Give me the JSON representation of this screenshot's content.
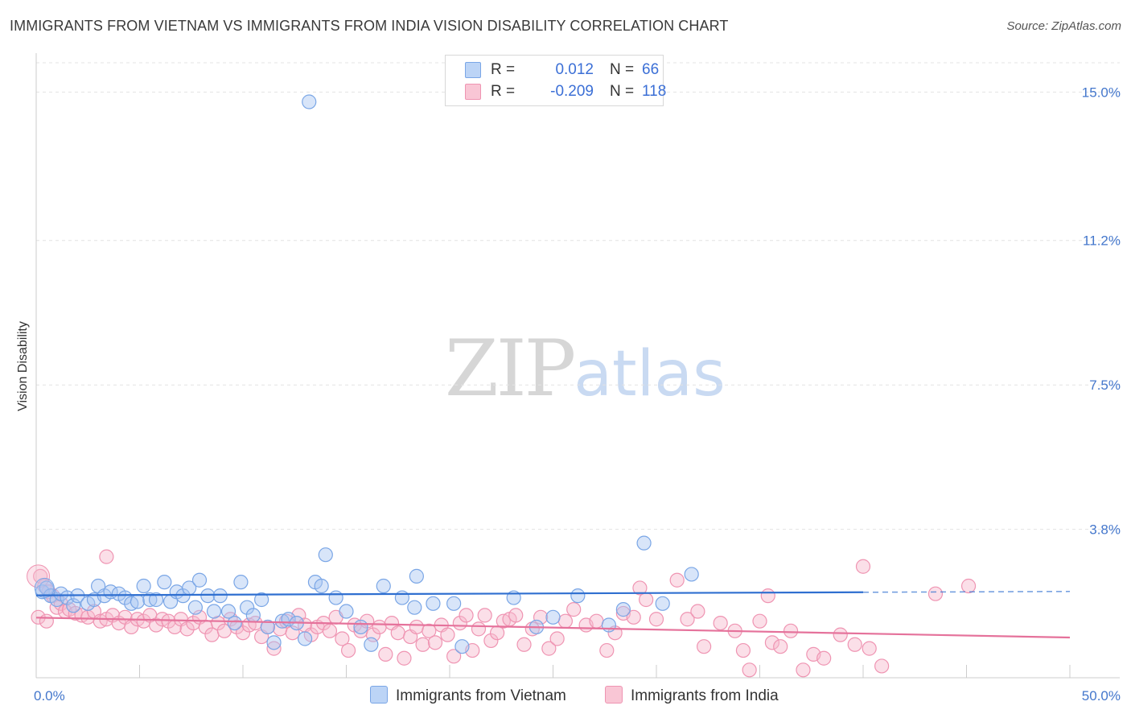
{
  "header": {
    "title": "IMMIGRANTS FROM VIETNAM VS IMMIGRANTS FROM INDIA VISION DISABILITY CORRELATION CHART",
    "source": "Source: ZipAtlas.com"
  },
  "watermark": {
    "zip": "ZIP",
    "atlas": "atlas"
  },
  "legend": {
    "series": [
      {
        "r_label": "R =",
        "r_value": "0.012",
        "n_label": "N =",
        "n_value": "66"
      },
      {
        "r_label": "R =",
        "r_value": "-0.209",
        "n_label": "N =",
        "n_value": "118"
      }
    ]
  },
  "bottom_legend": {
    "vietnam": "Immigrants from Vietnam",
    "india": "Immigrants from India"
  },
  "chart_data": {
    "type": "scatter",
    "title": "IMMIGRANTS FROM VIETNAM VS IMMIGRANTS FROM INDIA VISION DISABILITY CORRELATION CHART",
    "xlabel": "",
    "ylabel": "Vision Disability",
    "xlim": [
      0,
      50
    ],
    "ylim": [
      0,
      15.75
    ],
    "x_tick_labels": [
      "0.0%",
      "50.0%"
    ],
    "y_ticks": [
      3.8,
      7.5,
      11.2,
      15.0
    ],
    "y_tick_labels": [
      "3.8%",
      "7.5%",
      "11.2%",
      "15.0%"
    ],
    "colors": {
      "vietnam_fill": "#a9c6f2",
      "vietnam_stroke": "#7aa6e6",
      "vietnam_line": "#2f6fd0",
      "india_fill": "#f7b8cc",
      "india_stroke": "#ef94b2",
      "india_line": "#e5729b",
      "tick_text": "#4477cc",
      "grid": "#e3e3e3"
    },
    "series": [
      {
        "name": "Immigrants from Vietnam",
        "trend": {
          "x": [
            0,
            40,
            50
          ],
          "y": [
            2.11,
            2.19,
            2.21
          ],
          "dashed_from": 40
        },
        "points": [
          [
            13.2,
            14.75
          ],
          [
            29.4,
            3.45
          ],
          [
            14.0,
            3.15
          ],
          [
            31.7,
            2.65
          ],
          [
            18.4,
            2.6
          ],
          [
            0.3,
            2.2
          ],
          [
            0.5,
            2.3
          ],
          [
            0.7,
            2.1
          ],
          [
            1.0,
            2.0
          ],
          [
            1.2,
            2.15
          ],
          [
            1.5,
            2.05
          ],
          [
            1.8,
            1.85
          ],
          [
            2.0,
            2.1
          ],
          [
            2.5,
            1.9
          ],
          [
            2.8,
            2.0
          ],
          [
            3.0,
            2.35
          ],
          [
            3.3,
            2.1
          ],
          [
            3.6,
            2.2
          ],
          [
            4.0,
            2.15
          ],
          [
            4.3,
            2.05
          ],
          [
            4.6,
            1.9
          ],
          [
            4.9,
            1.95
          ],
          [
            5.2,
            2.35
          ],
          [
            5.5,
            2.0
          ],
          [
            5.8,
            2.0
          ],
          [
            6.2,
            2.45
          ],
          [
            6.5,
            1.95
          ],
          [
            6.8,
            2.2
          ],
          [
            7.1,
            2.1
          ],
          [
            7.4,
            2.3
          ],
          [
            7.7,
            1.8
          ],
          [
            7.9,
            2.5
          ],
          [
            8.3,
            2.1
          ],
          [
            8.6,
            1.7
          ],
          [
            8.9,
            2.1
          ],
          [
            9.3,
            1.7
          ],
          [
            9.6,
            1.4
          ],
          [
            9.9,
            2.45
          ],
          [
            10.2,
            1.8
          ],
          [
            10.5,
            1.6
          ],
          [
            10.9,
            2.0
          ],
          [
            11.2,
            1.3
          ],
          [
            11.5,
            0.9
          ],
          [
            11.9,
            1.45
          ],
          [
            12.2,
            1.5
          ],
          [
            12.6,
            1.4
          ],
          [
            13.0,
            1.0
          ],
          [
            13.5,
            2.45
          ],
          [
            13.8,
            2.35
          ],
          [
            14.5,
            2.05
          ],
          [
            15.0,
            1.7
          ],
          [
            15.7,
            1.3
          ],
          [
            16.2,
            0.85
          ],
          [
            16.8,
            2.35
          ],
          [
            17.7,
            2.05
          ],
          [
            18.3,
            1.8
          ],
          [
            19.2,
            1.9
          ],
          [
            20.2,
            1.9
          ],
          [
            20.6,
            0.8
          ],
          [
            23.1,
            2.05
          ],
          [
            24.2,
            1.3
          ],
          [
            25.0,
            1.55
          ],
          [
            26.2,
            2.1
          ],
          [
            27.7,
            1.35
          ],
          [
            28.4,
            1.75
          ],
          [
            30.3,
            1.9
          ]
        ]
      },
      {
        "name": "Immigrants from India",
        "trend": {
          "x": [
            0,
            50
          ],
          "y": [
            1.54,
            1.03
          ]
        },
        "points": [
          [
            0.2,
            2.6
          ],
          [
            0.4,
            2.35
          ],
          [
            0.6,
            2.2
          ],
          [
            0.8,
            2.1
          ],
          [
            1.0,
            1.8
          ],
          [
            1.2,
            1.9
          ],
          [
            1.4,
            1.7
          ],
          [
            1.6,
            1.75
          ],
          [
            1.9,
            1.65
          ],
          [
            2.2,
            1.6
          ],
          [
            2.5,
            1.55
          ],
          [
            2.8,
            1.7
          ],
          [
            3.1,
            1.45
          ],
          [
            3.4,
            1.5
          ],
          [
            3.7,
            1.6
          ],
          [
            4.0,
            1.4
          ],
          [
            4.3,
            1.55
          ],
          [
            4.6,
            1.3
          ],
          [
            4.9,
            1.5
          ],
          [
            5.2,
            1.45
          ],
          [
            5.5,
            1.6
          ],
          [
            5.8,
            1.35
          ],
          [
            6.1,
            1.5
          ],
          [
            6.4,
            1.45
          ],
          [
            6.7,
            1.3
          ],
          [
            7.0,
            1.5
          ],
          [
            7.3,
            1.25
          ],
          [
            7.6,
            1.4
          ],
          [
            7.9,
            1.55
          ],
          [
            8.2,
            1.3
          ],
          [
            8.5,
            1.1
          ],
          [
            8.8,
            1.4
          ],
          [
            9.1,
            1.2
          ],
          [
            9.4,
            1.5
          ],
          [
            9.7,
            1.3
          ],
          [
            10.0,
            1.15
          ],
          [
            10.3,
            1.35
          ],
          [
            10.6,
            1.4
          ],
          [
            10.9,
            1.05
          ],
          [
            11.2,
            1.3
          ],
          [
            11.5,
            0.75
          ],
          [
            11.8,
            1.25
          ],
          [
            12.1,
            1.45
          ],
          [
            12.4,
            1.15
          ],
          [
            12.7,
            1.6
          ],
          [
            13.0,
            1.35
          ],
          [
            13.3,
            1.1
          ],
          [
            13.6,
            1.3
          ],
          [
            13.9,
            1.4
          ],
          [
            14.2,
            1.2
          ],
          [
            14.5,
            1.55
          ],
          [
            14.8,
            1.0
          ],
          [
            15.1,
            0.7
          ],
          [
            15.4,
            1.35
          ],
          [
            15.7,
            1.2
          ],
          [
            16.0,
            1.45
          ],
          [
            16.3,
            1.1
          ],
          [
            16.6,
            1.3
          ],
          [
            16.9,
            0.6
          ],
          [
            17.2,
            1.4
          ],
          [
            17.5,
            1.15
          ],
          [
            17.8,
            0.5
          ],
          [
            18.1,
            1.05
          ],
          [
            18.4,
            1.3
          ],
          [
            18.7,
            0.85
          ],
          [
            19.0,
            1.2
          ],
          [
            19.3,
            0.9
          ],
          [
            19.6,
            1.35
          ],
          [
            19.9,
            1.1
          ],
          [
            20.2,
            0.55
          ],
          [
            20.5,
            1.4
          ],
          [
            20.8,
            1.6
          ],
          [
            21.1,
            0.7
          ],
          [
            21.4,
            1.25
          ],
          [
            21.7,
            1.6
          ],
          [
            22.0,
            0.95
          ],
          [
            22.3,
            1.15
          ],
          [
            22.6,
            1.45
          ],
          [
            22.9,
            1.5
          ],
          [
            23.2,
            1.6
          ],
          [
            23.6,
            0.85
          ],
          [
            24.0,
            1.25
          ],
          [
            24.4,
            1.55
          ],
          [
            24.8,
            0.75
          ],
          [
            25.2,
            1.0
          ],
          [
            25.6,
            1.45
          ],
          [
            26.0,
            1.75
          ],
          [
            26.6,
            1.35
          ],
          [
            27.1,
            1.45
          ],
          [
            27.6,
            0.7
          ],
          [
            28.0,
            1.15
          ],
          [
            28.4,
            1.65
          ],
          [
            28.9,
            1.55
          ],
          [
            29.2,
            2.3
          ],
          [
            29.5,
            2.0
          ],
          [
            30.0,
            1.5
          ],
          [
            31.0,
            2.5
          ],
          [
            31.5,
            1.5
          ],
          [
            32.0,
            1.7
          ],
          [
            33.1,
            1.4
          ],
          [
            33.8,
            1.2
          ],
          [
            34.2,
            0.7
          ],
          [
            34.5,
            0.2
          ],
          [
            35.0,
            1.45
          ],
          [
            35.6,
            0.9
          ],
          [
            36.0,
            0.8
          ],
          [
            36.5,
            1.2
          ],
          [
            37.1,
            0.2
          ],
          [
            37.6,
            0.6
          ],
          [
            38.1,
            0.5
          ],
          [
            38.9,
            1.1
          ],
          [
            39.6,
            0.85
          ],
          [
            40.3,
            0.75
          ],
          [
            40.9,
            0.3
          ],
          [
            43.5,
            2.15
          ],
          [
            0.1,
            1.55
          ],
          [
            0.5,
            1.45
          ],
          [
            3.4,
            3.1
          ]
        ]
      }
    ],
    "extra_india_points": [
      [
        40.0,
        2.85
      ],
      [
        45.1,
        2.35
      ],
      [
        35.4,
        2.1
      ],
      [
        32.3,
        0.8
      ]
    ]
  }
}
